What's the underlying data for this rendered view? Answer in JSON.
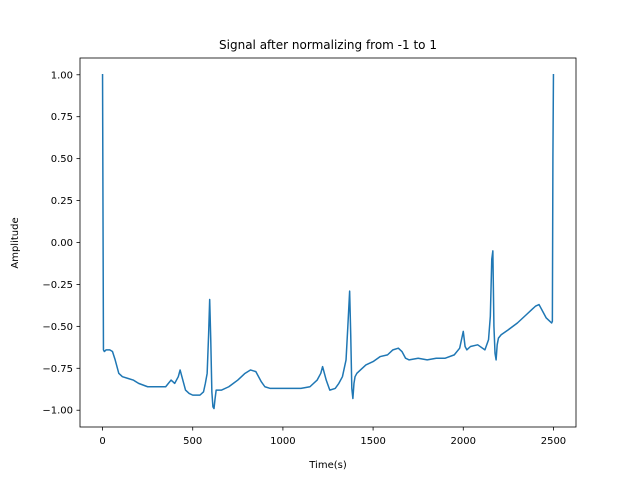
{
  "chart_data": {
    "type": "line",
    "title": "Signal after normalizing from -1 to 1",
    "xlabel": "Time(s)",
    "ylabel": "Amplitude",
    "xlim": [
      -125,
      2625
    ],
    "ylim": [
      -1.1,
      1.1
    ],
    "xticks": [
      0,
      500,
      1000,
      1500,
      2000,
      2500
    ],
    "xtick_labels": [
      "0",
      "500",
      "1000",
      "1500",
      "2000",
      "2500"
    ],
    "yticks": [
      -1.0,
      -0.75,
      -0.5,
      -0.25,
      0.0,
      0.25,
      0.5,
      0.75,
      1.0
    ],
    "ytick_labels": [
      "−1.00",
      "−0.75",
      "−0.50",
      "−0.25",
      "0.00",
      "0.25",
      "0.50",
      "0.75",
      "1.00"
    ],
    "grid": false,
    "line_color": "#1f77b4",
    "series": [
      {
        "x": [
          0,
          5,
          10,
          20,
          40,
          55,
          70,
          90,
          110,
          140,
          170,
          200,
          250,
          300,
          350,
          380,
          400,
          420,
          430,
          440,
          460,
          480,
          500,
          520,
          540,
          560,
          570,
          580,
          588,
          594,
          600,
          606,
          612,
          618,
          624,
          630,
          640,
          660,
          700,
          750,
          790,
          820,
          850,
          880,
          900,
          930,
          960,
          1000,
          1050,
          1100,
          1150,
          1190,
          1210,
          1220,
          1230,
          1240,
          1260,
          1290,
          1310,
          1330,
          1350,
          1360,
          1370,
          1376,
          1382,
          1388,
          1394,
          1400,
          1410,
          1430,
          1460,
          1500,
          1540,
          1580,
          1610,
          1640,
          1660,
          1680,
          1700,
          1750,
          1800,
          1850,
          1900,
          1950,
          1980,
          2000,
          2010,
          2020,
          2040,
          2080,
          2120,
          2140,
          2150,
          2158,
          2164,
          2170,
          2176,
          2182,
          2188,
          2195,
          2210,
          2250,
          2300,
          2350,
          2380,
          2400,
          2420,
          2440,
          2460,
          2480,
          2490,
          2494,
          2497,
          2500
        ],
        "y": [
          1.0,
          -0.64,
          -0.65,
          -0.64,
          -0.64,
          -0.65,
          -0.7,
          -0.78,
          -0.8,
          -0.81,
          -0.82,
          -0.84,
          -0.86,
          -0.86,
          -0.86,
          -0.82,
          -0.84,
          -0.8,
          -0.76,
          -0.8,
          -0.88,
          -0.9,
          -0.91,
          -0.91,
          -0.91,
          -0.89,
          -0.84,
          -0.78,
          -0.55,
          -0.34,
          -0.58,
          -0.89,
          -0.98,
          -0.99,
          -0.93,
          -0.88,
          -0.88,
          -0.88,
          -0.86,
          -0.82,
          -0.78,
          -0.76,
          -0.77,
          -0.83,
          -0.86,
          -0.87,
          -0.87,
          -0.87,
          -0.87,
          -0.87,
          -0.86,
          -0.82,
          -0.78,
          -0.74,
          -0.78,
          -0.82,
          -0.88,
          -0.87,
          -0.84,
          -0.8,
          -0.7,
          -0.5,
          -0.29,
          -0.55,
          -0.87,
          -0.93,
          -0.84,
          -0.8,
          -0.78,
          -0.76,
          -0.73,
          -0.71,
          -0.68,
          -0.67,
          -0.64,
          -0.63,
          -0.65,
          -0.69,
          -0.7,
          -0.69,
          -0.7,
          -0.69,
          -0.69,
          -0.67,
          -0.63,
          -0.53,
          -0.62,
          -0.64,
          -0.62,
          -0.61,
          -0.64,
          -0.58,
          -0.44,
          -0.1,
          -0.05,
          -0.5,
          -0.66,
          -0.7,
          -0.61,
          -0.57,
          -0.55,
          -0.52,
          -0.48,
          -0.43,
          -0.4,
          -0.38,
          -0.37,
          -0.41,
          -0.45,
          -0.47,
          -0.48,
          -0.47,
          0.5,
          1.0
        ]
      }
    ]
  }
}
